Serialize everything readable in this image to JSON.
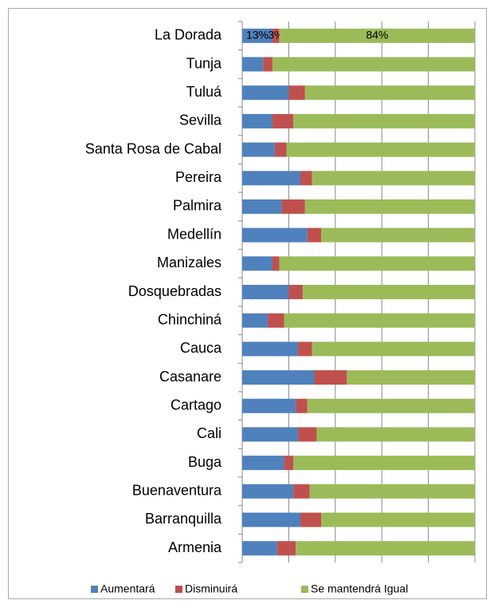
{
  "chart_data": {
    "type": "stacked_bar_horizontal",
    "categories": [
      "La Dorada",
      "Tunja",
      "Tuluá",
      "Sevilla",
      "Santa Rosa de Cabal",
      "Pereira",
      "Palmira",
      "Medellín",
      "Manizales",
      "Dosquebradas",
      "Chinchiná",
      "Cauca",
      "Casanare",
      "Cartago",
      "Cali",
      "Buga",
      "Buenaventura",
      "Barranquilla",
      "Armenia"
    ],
    "series": [
      {
        "name": "Aumentará",
        "color": "#4f81bd",
        "values": [
          13,
          9,
          20,
          13,
          14,
          25,
          17,
          28,
          13,
          20,
          11,
          24,
          31,
          23,
          24,
          18,
          22,
          25,
          15
        ],
        "value_labels": [
          "13%",
          null,
          null,
          null,
          null,
          null,
          null,
          null,
          null,
          null,
          null,
          null,
          null,
          null,
          null,
          null,
          null,
          null,
          null
        ]
      },
      {
        "name": "Disminuirá",
        "color": "#c0504d",
        "values": [
          3,
          4,
          7,
          9,
          5,
          5,
          10,
          6,
          3,
          6,
          7,
          6,
          14,
          5,
          8,
          4,
          7,
          9,
          8
        ],
        "value_labels": [
          "3%",
          null,
          null,
          null,
          null,
          null,
          null,
          null,
          null,
          null,
          null,
          null,
          null,
          null,
          null,
          null,
          null,
          null,
          null
        ]
      },
      {
        "name": "Se mantendrá Igual",
        "color": "#9bbb59",
        "values": [
          84,
          87,
          73,
          78,
          81,
          70,
          73,
          66,
          84,
          74,
          82,
          70,
          55,
          72,
          68,
          78,
          71,
          66,
          77
        ],
        "value_labels": [
          "84%",
          null,
          null,
          null,
          null,
          null,
          null,
          null,
          null,
          null,
          null,
          null,
          null,
          null,
          null,
          null,
          null,
          null,
          null
        ]
      }
    ],
    "xlim": [
      0,
      100
    ],
    "xticks": [
      0,
      20,
      40,
      60,
      80,
      100
    ],
    "xtick_labels": false,
    "grid": true,
    "legend": "bottom"
  }
}
